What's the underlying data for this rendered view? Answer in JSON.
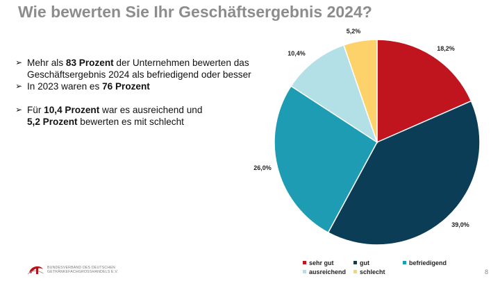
{
  "title": "Wie bewerten Sie Ihr Geschäftsergebnis 2024?",
  "bullets": [
    {
      "pre": "Mehr als ",
      "bold": "83 Prozent",
      "post": " der Unternehmen bewerten das Geschäftsergebnis 2024 als befriedigend oder besser"
    },
    {
      "pre": "In 2023 waren es ",
      "bold": "76 Prozent",
      "post": ""
    },
    {
      "pre": "Für ",
      "bold": "10,4 Prozent",
      "post": " war es ausreichend und",
      "bold2": "5,2 Prozent",
      "post2": " bewerten es mit schlecht"
    }
  ],
  "chart_data": {
    "type": "pie",
    "slices": [
      {
        "label": "sehr gut",
        "value": 18.2,
        "value_label": "18,2%",
        "color": "#c0151f"
      },
      {
        "label": "gut",
        "value": 39.0,
        "value_label": "39,0%",
        "color": "#0b3d57"
      },
      {
        "label": "befriedigend",
        "value": 26.0,
        "value_label": "26,0%",
        "color": "#1e9cb3"
      },
      {
        "label": "ausreichend",
        "value": 10.4,
        "value_label": "10,4%",
        "color": "#b3dfe7"
      },
      {
        "label": "schlecht",
        "value": 5.2,
        "value_label": "5,2%",
        "color": "#fdd26a"
      }
    ],
    "start": "12 o'clock",
    "direction": "clockwise",
    "legend_position": "bottom"
  },
  "logo": {
    "line1": "BUNDESVERBAND DES DEUTSCHEN",
    "line2": "GETRÄNKEFACHGROSSHANDELS E.V."
  },
  "page_number": "8"
}
